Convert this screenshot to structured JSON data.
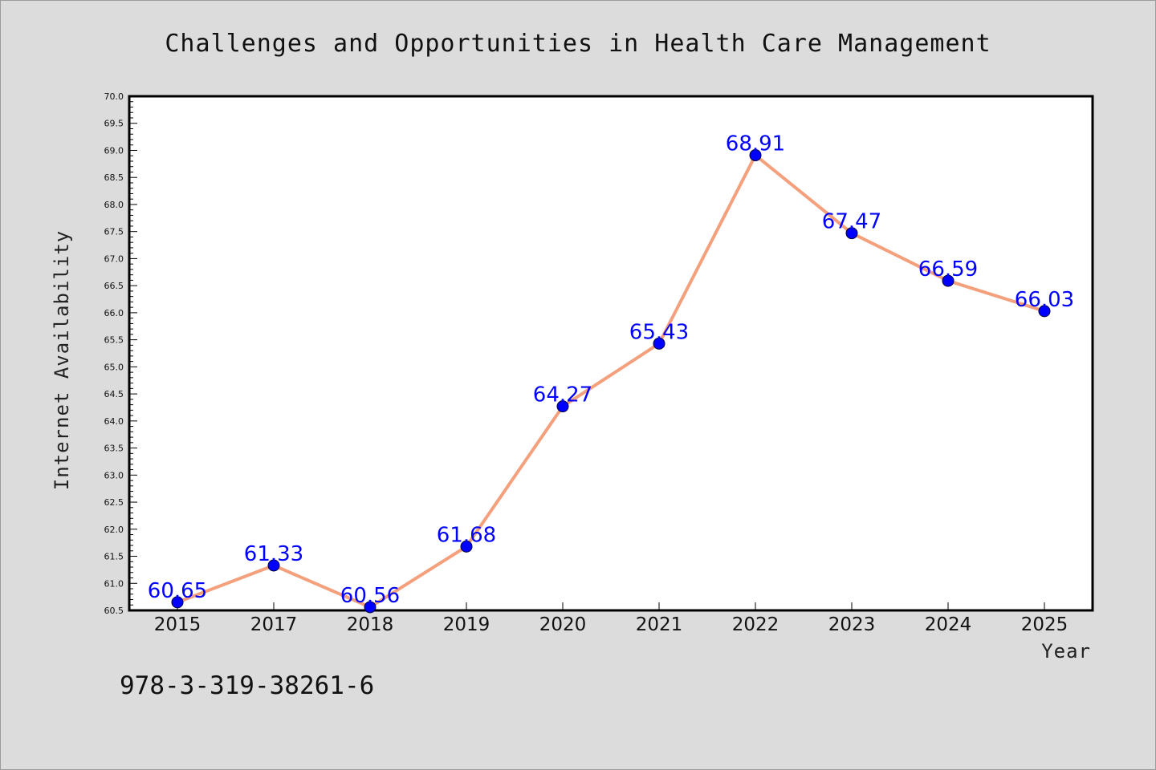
{
  "chart_data": {
    "type": "line",
    "title": "Challenges and Opportunities in Health Care Management",
    "xlabel": "Year",
    "ylabel": "Internet Availability",
    "categories": [
      "2015",
      "2017",
      "2018",
      "2019",
      "2020",
      "2021",
      "2022",
      "2023",
      "2024",
      "2025"
    ],
    "series": [
      {
        "values": [
          60.65,
          61.33,
          60.56,
          61.68,
          64.27,
          65.43,
          68.91,
          67.47,
          66.59,
          66.03
        ],
        "data_labels": [
          "60.65",
          "61.33",
          "60.56",
          "61.68",
          "64.27",
          "65.43",
          "68.91",
          "67.47",
          "66.59",
          "66.03"
        ],
        "line_color": "#f4a07c",
        "marker_color": "#0000ff"
      }
    ],
    "ylim": [
      60.5,
      70.0
    ],
    "yticks": [
      "60.5",
      "61.0",
      "61.5",
      "62.0",
      "62.5",
      "63.0",
      "63.5",
      "64.0",
      "64.5",
      "65.0",
      "65.5",
      "66.0",
      "66.5",
      "67.0",
      "67.5",
      "68.0",
      "68.5",
      "69.0",
      "69.5",
      "70.0"
    ],
    "grid": false,
    "legend": "none",
    "annotation": "978-3-319-38261-6"
  },
  "colors": {
    "background": "#dcdcdc",
    "plot_area": "#ffffff",
    "line": "#f4a07c",
    "marker": "#0000ff",
    "data_label": "#0000ff"
  }
}
